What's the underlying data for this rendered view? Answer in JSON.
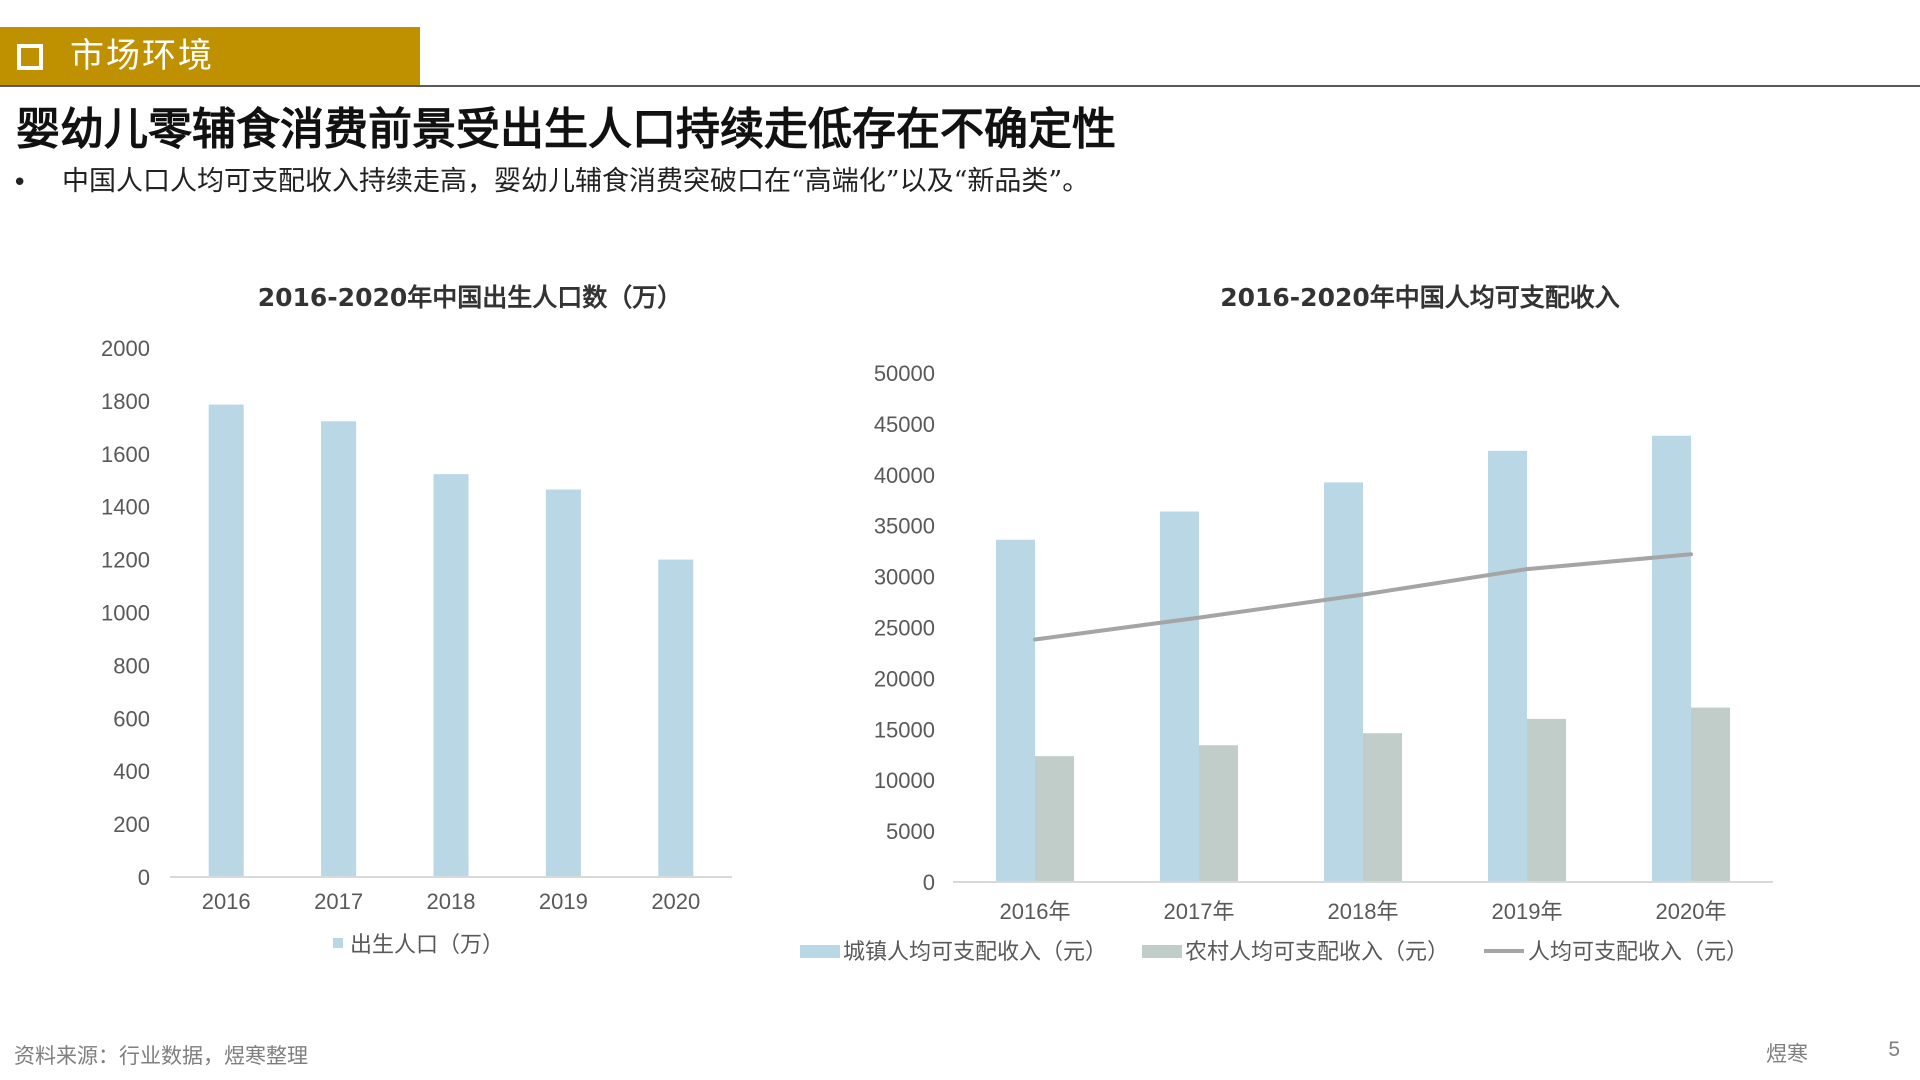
{
  "section": {
    "title": "市场环境"
  },
  "headline": "婴幼儿零辅食消费前景受出生人口持续走低存在不确定性",
  "bullet": "中国人口人均可支配收入持续走高，婴幼儿辅食消费突破口在“高端化”以及“新品类”。",
  "bullet_marker": "•",
  "footer": {
    "source": "资料来源：行业数据，煜寒整理",
    "brand": "煜寒",
    "page": "5"
  },
  "colors": {
    "section_bar": "#bf9000",
    "urban": "#b9d7e5",
    "rural": "#c1cdc8",
    "line": "#a5a5a5",
    "axis": "#d9d9d9"
  },
  "chart_data": [
    {
      "type": "bar",
      "title": "2016-2020年中国出生人口数（万）",
      "categories": [
        "2016",
        "2017",
        "2018",
        "2019",
        "2020"
      ],
      "series": [
        {
          "name": "出生人口（万）",
          "values": [
            1786,
            1723,
            1523,
            1465,
            1200
          ]
        }
      ],
      "ylim": [
        0,
        2000
      ],
      "yticks": [
        "0",
        "200",
        "400",
        "600",
        "800",
        "1000",
        "1200",
        "1400",
        "1600",
        "1800",
        "2000"
      ],
      "xlabel": "",
      "ylabel": "",
      "grid": false,
      "legend": "bottom"
    },
    {
      "type": "bar",
      "title": "2016-2020年中国人均可支配收入",
      "categories": [
        "2016年",
        "2017年",
        "2018年",
        "2019年",
        "2020年"
      ],
      "series": [
        {
          "name": "城镇人均可支配收入（元）",
          "kind": "bar",
          "values": [
            33616,
            36396,
            39251,
            42359,
            43834
          ]
        },
        {
          "name": "农村人均可支配收入（元）",
          "kind": "bar",
          "values": [
            12363,
            13432,
            14617,
            16021,
            17131
          ]
        },
        {
          "name": "人均可支配收入（元）",
          "kind": "line",
          "values": [
            23821,
            25974,
            28228,
            30733,
            32189
          ]
        }
      ],
      "ylim": [
        0,
        50000
      ],
      "yticks": [
        "0",
        "5000",
        "10000",
        "15000",
        "20000",
        "25000",
        "30000",
        "35000",
        "40000",
        "45000",
        "50000"
      ],
      "xlabel": "",
      "ylabel": "",
      "grid": false,
      "legend": "bottom"
    }
  ]
}
